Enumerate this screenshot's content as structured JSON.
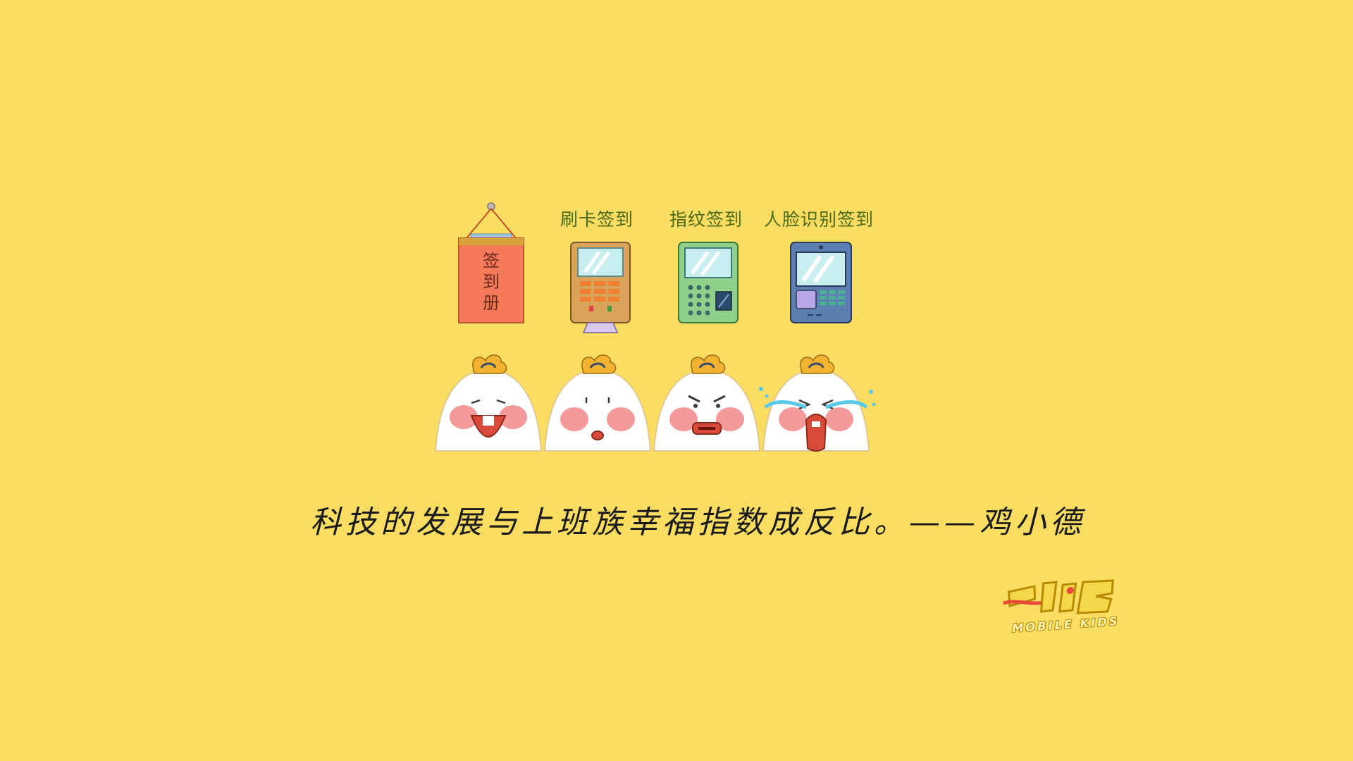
{
  "colors": {
    "background": "#fbdd62",
    "label": "#4a6a1a",
    "register_red": "#f47a5a",
    "card_machine": "#d9a35a",
    "fingerprint_machine": "#8fd08a",
    "face_machine": "#5a7fb0"
  },
  "devices": [
    {
      "label": "",
      "sign_text": [
        "签",
        "到",
        "册"
      ],
      "icon": "sign-in-register-icon"
    },
    {
      "label": "刷卡签到",
      "icon": "card-reader-icon"
    },
    {
      "label": "指纹签到",
      "icon": "fingerprint-scanner-icon"
    },
    {
      "label": "人脸识别签到",
      "icon": "face-recognition-icon"
    }
  ],
  "characters": [
    {
      "mood": "laughing",
      "icon": "laughing-face-icon"
    },
    {
      "mood": "calm",
      "icon": "calm-face-icon"
    },
    {
      "mood": "angry",
      "icon": "angry-face-icon"
    },
    {
      "mood": "crying",
      "icon": "crying-face-icon"
    }
  ],
  "quote": "科技的发展与上班族幸福指数成反比。——鸡小德",
  "logo": {
    "text": "MOBILE KIDS",
    "icon": "mobile-kids-logo-icon"
  }
}
